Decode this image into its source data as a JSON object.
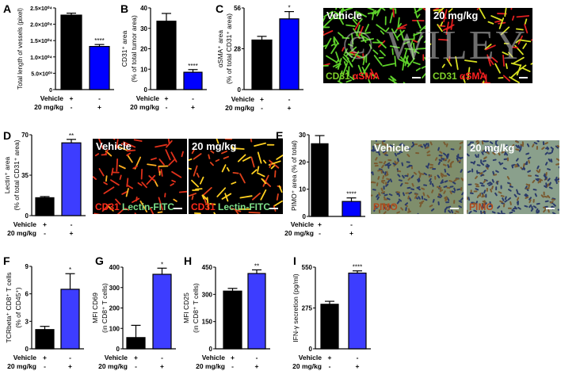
{
  "watermark": "© WILEY",
  "colors": {
    "bar_vehicle": "#000000",
    "bar_treated_dark": "#0000ff",
    "bar_treated_light": "#3d3dff",
    "cd31_red": "#ff2a1a",
    "lectin_green": "#7fe08a",
    "cd31_green": "#7fd12a",
    "sma_red": "#ff2020",
    "pimo_brown": "#b34a1c"
  },
  "micrographs": [
    {
      "panel": "C",
      "title": "Vehicle",
      "caption": [
        {
          "text": "CD31 ",
          "color": "#7fd12a"
        },
        {
          "text": "αSMA",
          "color": "#ff2020"
        }
      ]
    },
    {
      "panel": "C",
      "title": "20 mg/kg",
      "caption": [
        {
          "text": "CD31 ",
          "color": "#7fd12a"
        },
        {
          "text": "αSMA",
          "color": "#ff2020"
        }
      ]
    },
    {
      "panel": "D",
      "title": "Vehicle",
      "caption": [
        {
          "text": "CD31 ",
          "color": "#ff2a1a"
        },
        {
          "text": "Lectin-FITC",
          "color": "#7fe08a"
        }
      ]
    },
    {
      "panel": "D",
      "title": "20 mg/kg",
      "caption": [
        {
          "text": "CD31 ",
          "color": "#ff2a1a"
        },
        {
          "text": "Lectin-FITC",
          "color": "#7fe08a"
        }
      ]
    },
    {
      "panel": "E",
      "title": "Vehicle",
      "caption": [
        {
          "text": "PIMO",
          "color": "#b34a1c"
        }
      ]
    },
    {
      "panel": "E",
      "title": "20 mg/kg",
      "caption": [
        {
          "text": "PIMO",
          "color": "#b34a1c"
        }
      ]
    }
  ],
  "chart_data": [
    {
      "panel": "A",
      "type": "bar",
      "ylabel": [
        "Total length of vessels (pixel)"
      ],
      "ylim": [
        0,
        25000
      ],
      "yticks": [
        0,
        5000,
        10000,
        15000,
        20000,
        25000
      ],
      "ytick_labels": [
        "0",
        "5.0×10⁰³",
        "1.0×10⁰⁴",
        "1.5×10⁰⁴",
        "2.0×10⁰⁴",
        "2.5×10⁰⁴"
      ],
      "conditions": [
        {
          "label": "Vehicle",
          "marks": [
            "+",
            "-"
          ]
        },
        {
          "label": "20 mg/kg",
          "marks": [
            "-",
            "+"
          ]
        }
      ],
      "values": [
        22800,
        13200
      ],
      "errors": [
        600,
        600
      ],
      "significance": [
        "",
        "****"
      ],
      "colors": [
        "#000000",
        "#0000ff"
      ]
    },
    {
      "panel": "B",
      "type": "bar",
      "ylabel": [
        "CD31⁺ area",
        "(% of total tumor area)"
      ],
      "ylim": [
        0,
        40
      ],
      "yticks": [
        0,
        10,
        20,
        30,
        40
      ],
      "ytick_labels": [
        "0",
        "10",
        "20",
        "30",
        "40"
      ],
      "conditions": [
        {
          "label": "Vehicle",
          "marks": [
            "+",
            "-"
          ]
        },
        {
          "label": "20 mg/kg",
          "marks": [
            "-",
            "+"
          ]
        }
      ],
      "values": [
        33.5,
        8.5
      ],
      "errors": [
        3.8,
        1.3
      ],
      "significance": [
        "",
        "****"
      ],
      "colors": [
        "#000000",
        "#0000ff"
      ]
    },
    {
      "panel": "C",
      "type": "bar",
      "ylabel": [
        "αSMA⁺ area",
        "(% of total CD31⁺ area)"
      ],
      "ylim": [
        0,
        56
      ],
      "yticks": [
        0,
        28,
        56
      ],
      "ytick_labels": [
        "0",
        "28",
        "56"
      ],
      "conditions": [
        {
          "label": "Vehicle",
          "marks": [
            "+",
            "-"
          ]
        },
        {
          "label": "20 mg/kg",
          "marks": [
            "-",
            "+"
          ]
        }
      ],
      "values": [
        34,
        48.5
      ],
      "errors": [
        2.5,
        5
      ],
      "significance": [
        "",
        "*"
      ],
      "colors": [
        "#000000",
        "#0000ff"
      ]
    },
    {
      "panel": "D",
      "type": "bar",
      "ylabel": [
        "Lectin⁺ area",
        "(% of total CD31⁺ area)"
      ],
      "ylim": [
        0,
        70
      ],
      "yticks": [
        0,
        35,
        70
      ],
      "ytick_labels": [
        "0",
        "35",
        "70"
      ],
      "conditions": [
        {
          "label": "Vehicle",
          "marks": [
            "+",
            "-"
          ]
        },
        {
          "label": "20 mg/kg",
          "marks": [
            "-",
            "+"
          ]
        }
      ],
      "values": [
        15.5,
        63
      ],
      "errors": [
        1,
        3
      ],
      "significance": [
        "",
        "**"
      ],
      "colors": [
        "#000000",
        "#3d3dff"
      ]
    },
    {
      "panel": "E",
      "type": "bar",
      "ylabel": [
        "PIMO⁺ area  (% of total)"
      ],
      "ylim": [
        0,
        30
      ],
      "yticks": [
        0,
        10,
        20,
        30
      ],
      "ytick_labels": [
        "0",
        "10",
        "20",
        "30"
      ],
      "conditions": [
        {
          "label": "Vehicle",
          "marks": [
            "+",
            "-"
          ]
        },
        {
          "label": "20 mg/kg",
          "marks": [
            "-",
            "+"
          ]
        }
      ],
      "values": [
        26.7,
        5.5
      ],
      "errors": [
        3,
        1.3
      ],
      "significance": [
        "",
        "****"
      ],
      "colors": [
        "#000000",
        "#0000ff"
      ]
    },
    {
      "panel": "F",
      "type": "bar",
      "ylabel": [
        "TCRbeta⁺ CD8⁺ T cells",
        "(% of CD45⁺)"
      ],
      "ylim": [
        0,
        9
      ],
      "yticks": [
        0,
        3,
        6,
        9
      ],
      "ytick_labels": [
        "0",
        "3",
        "6",
        "9"
      ],
      "conditions": [
        {
          "label": "Vehicle",
          "marks": [
            "+",
            "-"
          ]
        },
        {
          "label": "20 mg/kg",
          "marks": [
            "-",
            "+"
          ]
        }
      ],
      "values": [
        2.1,
        6.5
      ],
      "errors": [
        0.35,
        1.7
      ],
      "significance": [
        "",
        "*"
      ],
      "colors": [
        "#000000",
        "#3d3dff"
      ]
    },
    {
      "panel": "G",
      "type": "bar",
      "ylabel": [
        "MFI CD69",
        "(in CD8⁺ T cells)"
      ],
      "ylim": [
        0,
        400
      ],
      "yticks": [
        0,
        100,
        200,
        300,
        400
      ],
      "ytick_labels": [
        "0",
        "100",
        "200",
        "300",
        "400"
      ],
      "conditions": [
        {
          "label": "Vehicle",
          "marks": [
            "+",
            "-"
          ]
        },
        {
          "label": "20 mg/kg",
          "marks": [
            "-",
            "+"
          ]
        }
      ],
      "values": [
        55,
        365
      ],
      "errors": [
        60,
        30
      ],
      "significance": [
        "",
        "*"
      ],
      "colors": [
        "#000000",
        "#3d3dff"
      ]
    },
    {
      "panel": "H",
      "type": "bar",
      "ylabel": [
        "MFI CD25",
        "(in CD8⁺ T cells)"
      ],
      "ylim": [
        0,
        450
      ],
      "yticks": [
        0,
        150,
        300,
        450
      ],
      "ytick_labels": [
        "0",
        "150",
        "300",
        "450"
      ],
      "conditions": [
        {
          "label": "Vehicle",
          "marks": [
            "+",
            "-"
          ]
        },
        {
          "label": "20 mg/kg",
          "marks": [
            "-",
            "+"
          ]
        }
      ],
      "values": [
        318,
        415
      ],
      "errors": [
        15,
        20
      ],
      "significance": [
        "",
        "**"
      ],
      "colors": [
        "#000000",
        "#3d3dff"
      ]
    },
    {
      "panel": "I",
      "type": "bar",
      "ylabel": [
        "IFN-γ secretion (pg/ml)"
      ],
      "ylim": [
        0,
        550
      ],
      "yticks": [
        0,
        275,
        550
      ],
      "ytick_labels": [
        "0",
        "275",
        "550"
      ],
      "conditions": [
        {
          "label": "Vehicle",
          "marks": [
            "+",
            "-"
          ]
        },
        {
          "label": "20 mg/kg",
          "marks": [
            "-",
            "+"
          ]
        }
      ],
      "values": [
        300,
        510
      ],
      "errors": [
        20,
        15
      ],
      "significance": [
        "",
        "****"
      ],
      "colors": [
        "#000000",
        "#3d3dff"
      ]
    }
  ]
}
